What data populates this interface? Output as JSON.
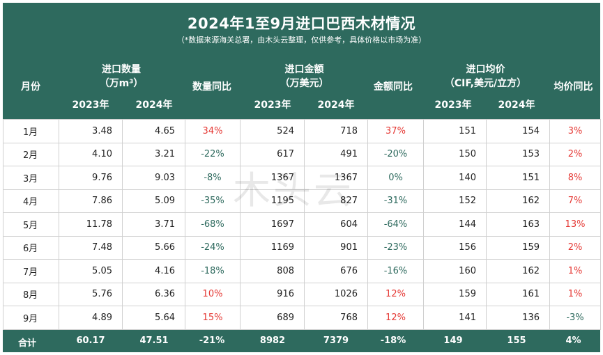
{
  "title": "2024年1至9月进口巴西木材情况",
  "subtitle": "（*数据来源海关总署，由木头云整理，仅供参考，具体价格以市场为准）",
  "watermark": "木头云",
  "headers": {
    "month": "月份",
    "volume_group_line1": "进口数量",
    "volume_group_line2": "（万m³）",
    "volume_yoy": "数量同比",
    "amount_group_line1": "进口金额",
    "amount_group_line2": "（万美元）",
    "amount_yoy": "金额同比",
    "price_group_line1": "进口均价",
    "price_group_line2": "（CIF,美元/立方）",
    "price_yoy": "均价同比",
    "y2023": "2023年",
    "y2024": "2024年"
  },
  "rows": [
    {
      "month": "1月",
      "v23": "3.48",
      "v24": "4.65",
      "vyoy": "34%",
      "a23": "524",
      "a24": "718",
      "ayoy": "37%",
      "p23": "151",
      "p24": "154",
      "pyoy": "3%"
    },
    {
      "month": "2月",
      "v23": "4.10",
      "v24": "3.21",
      "vyoy": "-22%",
      "a23": "617",
      "a24": "491",
      "ayoy": "-20%",
      "p23": "150",
      "p24": "153",
      "pyoy": "2%"
    },
    {
      "month": "3月",
      "v23": "9.76",
      "v24": "9.03",
      "vyoy": "-8%",
      "a23": "1367",
      "a24": "1367",
      "ayoy": "0%",
      "p23": "140",
      "p24": "151",
      "pyoy": "8%"
    },
    {
      "month": "4月",
      "v23": "7.86",
      "v24": "5.09",
      "vyoy": "-35%",
      "a23": "1195",
      "a24": "827",
      "ayoy": "-31%",
      "p23": "152",
      "p24": "162",
      "pyoy": "7%"
    },
    {
      "month": "5月",
      "v23": "11.78",
      "v24": "3.71",
      "vyoy": "-68%",
      "a23": "1697",
      "a24": "604",
      "ayoy": "-64%",
      "p23": "144",
      "p24": "163",
      "pyoy": "13%"
    },
    {
      "month": "6月",
      "v23": "7.48",
      "v24": "5.66",
      "vyoy": "-24%",
      "a23": "1169",
      "a24": "901",
      "ayoy": "-23%",
      "p23": "156",
      "p24": "159",
      "pyoy": "2%"
    },
    {
      "month": "7月",
      "v23": "5.05",
      "v24": "4.16",
      "vyoy": "-18%",
      "a23": "808",
      "a24": "676",
      "ayoy": "-16%",
      "p23": "160",
      "p24": "162",
      "pyoy": "1%"
    },
    {
      "month": "8月",
      "v23": "5.76",
      "v24": "6.36",
      "vyoy": "10%",
      "a23": "916",
      "a24": "1026",
      "ayoy": "12%",
      "p23": "159",
      "p24": "161",
      "pyoy": "1%"
    },
    {
      "month": "9月",
      "v23": "4.89",
      "v24": "5.64",
      "vyoy": "15%",
      "a23": "689",
      "a24": "768",
      "ayoy": "12%",
      "p23": "141",
      "p24": "136",
      "pyoy": "-3%"
    }
  ],
  "total": {
    "label": "合计",
    "v23": "60.17",
    "v24": "47.51",
    "vyoy": "-21%",
    "a23": "8982",
    "a24": "7379",
    "ayoy": "-18%",
    "p23": "149",
    "p24": "155",
    "pyoy": "4%"
  },
  "colors": {
    "band": "#2e6a5e",
    "positive": "#e53935",
    "negative": "#2e6a5e"
  }
}
